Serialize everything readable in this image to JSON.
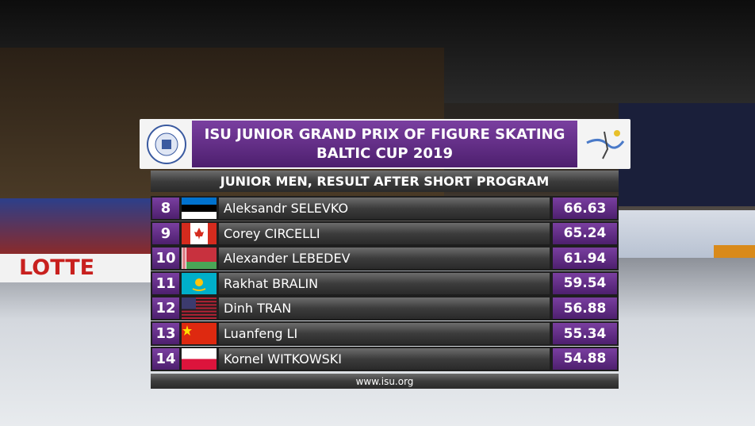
{
  "header": {
    "title_line1": "ISU JUNIOR GRAND PRIX OF FIGURE SKATING",
    "title_line2": "BALTIC CUP 2019",
    "subtitle": "JUNIOR MEN, RESULT AFTER SHORT PROGRAM"
  },
  "table": {
    "rows": [
      [
        "8",
        "Aleksandr SELEVKO",
        "66.63"
      ],
      [
        "9",
        "Corey CIRCELLI",
        "65.24"
      ],
      [
        "10",
        "Alexander LEBEDEV",
        "61.94"
      ],
      [
        "11",
        "Rakhat BRALIN",
        "59.54"
      ],
      [
        "12",
        "Dinh TRAN",
        "56.88"
      ],
      [
        "13",
        "Luanfeng LI",
        "55.34"
      ],
      [
        "14",
        "Kornel WITKOWSKI",
        "54.88"
      ]
    ]
  },
  "footer": "www.isu.org",
  "background": {
    "banner": "LOTTE"
  }
}
